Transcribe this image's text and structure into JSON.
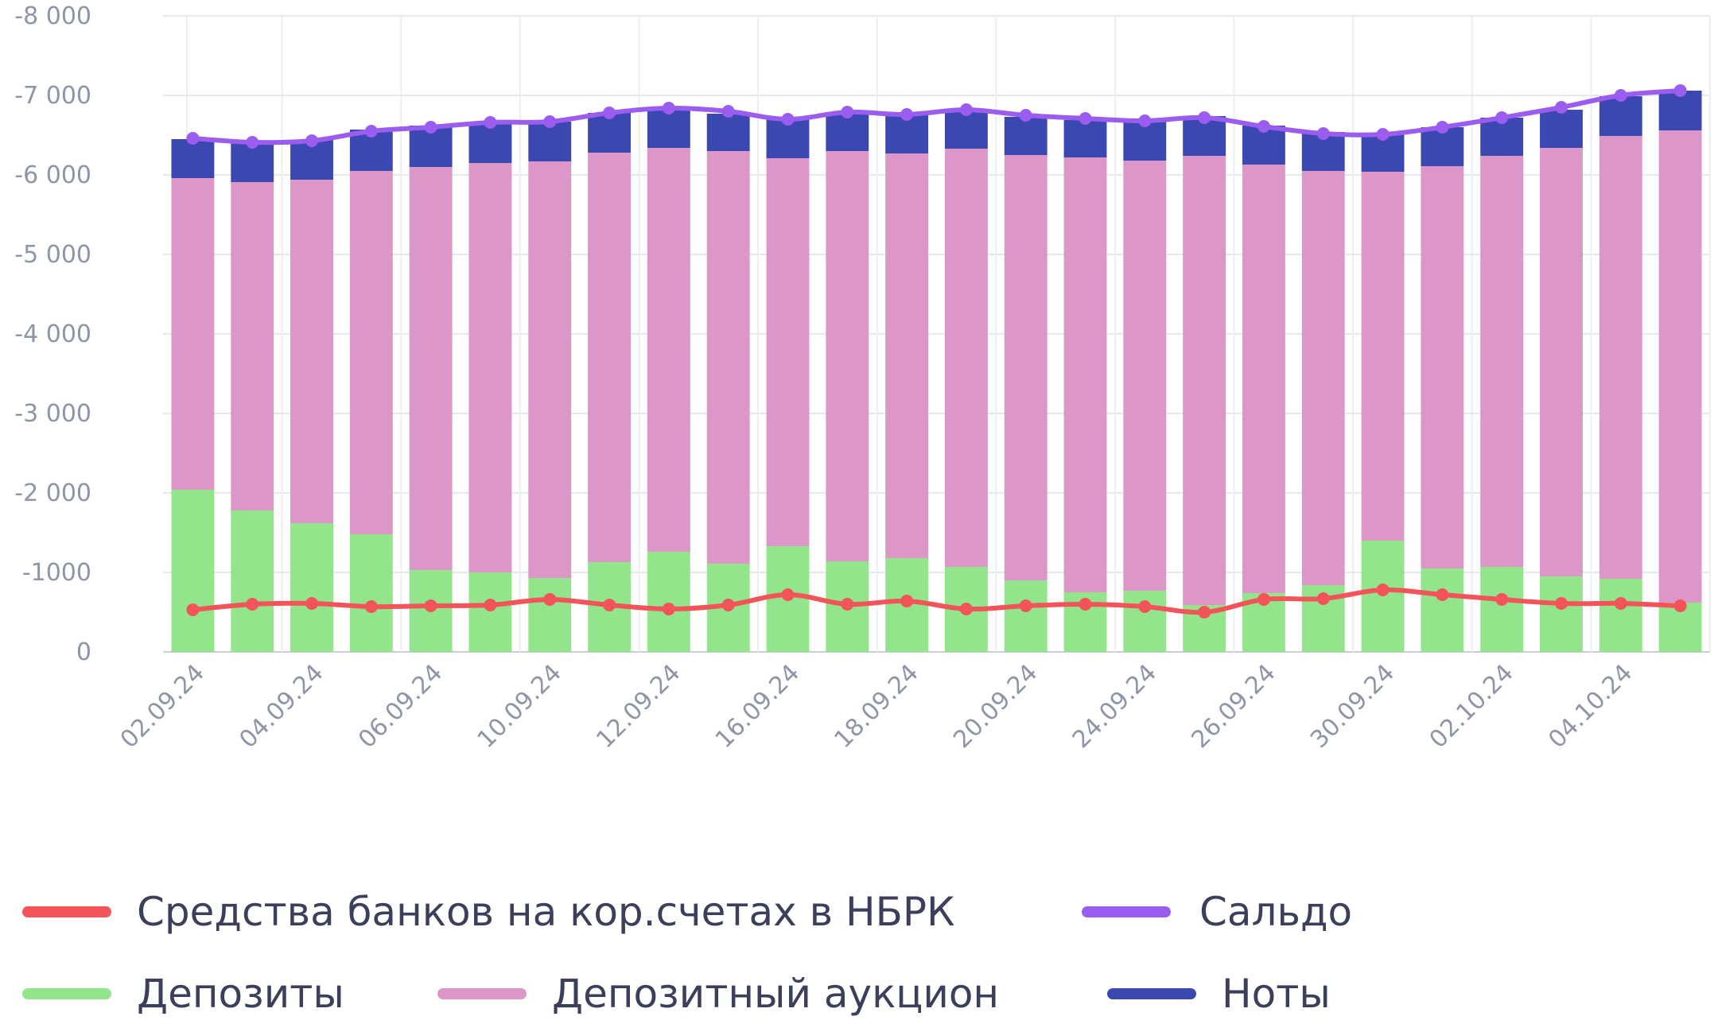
{
  "chart_data": {
    "type": "bar",
    "stacked": true,
    "y_axis": {
      "min": 0,
      "max": -8000,
      "ticks": [
        "0",
        "-1000",
        "-2 000",
        "-3 000",
        "-4 000",
        "-5 000",
        "-6 000",
        "-7 000",
        "-8 000"
      ],
      "tick_values": [
        0,
        -1000,
        -2000,
        -3000,
        -4000,
        -5000,
        -6000,
        -7000,
        -8000
      ]
    },
    "x_tick_labels": [
      "02.09.24",
      "04.09.24",
      "06.09.24",
      "10.09.24",
      "12.09.24",
      "16.09.24",
      "18.09.24",
      "20.09.24",
      "24.09.24",
      "26.09.24",
      "30.09.24",
      "02.10.24",
      "04.10.24"
    ],
    "x_tick_every": 2,
    "grid": true,
    "legend_position": "bottom",
    "bar_series": [
      {
        "name": "Депозиты",
        "color": "#93e58b",
        "values": [
          -2040,
          -1780,
          -1620,
          -1480,
          -1030,
          -1000,
          -930,
          -1130,
          -1260,
          -1110,
          -1330,
          -1140,
          -1180,
          -1070,
          -900,
          -750,
          -770,
          -590,
          -740,
          -840,
          -1400,
          -1050,
          -1070,
          -950,
          -920,
          -620
        ]
      },
      {
        "name": "Депозитный аукцион",
        "color": "#dc96c8",
        "values": [
          -3920,
          -4130,
          -4320,
          -4570,
          -5070,
          -5150,
          -5240,
          -5150,
          -5080,
          -5190,
          -4880,
          -5160,
          -5090,
          -5260,
          -5350,
          -5470,
          -5410,
          -5650,
          -5390,
          -5210,
          -4640,
          -5060,
          -5170,
          -5390,
          -5570,
          -5940
        ]
      },
      {
        "name": "Ноты",
        "color": "#3c48b2",
        "values": [
          -490,
          -510,
          -500,
          -520,
          -520,
          -510,
          -500,
          -500,
          -470,
          -470,
          -510,
          -480,
          -480,
          -490,
          -480,
          -470,
          -490,
          -500,
          -490,
          -490,
          -470,
          -490,
          -480,
          -480,
          -500,
          -500
        ]
      }
    ],
    "line_series": [
      {
        "name": "Средства банков на кор.счетах в НБРК",
        "color": "#f2545a",
        "values": [
          -530,
          -600,
          -610,
          -570,
          -580,
          -590,
          -660,
          -590,
          -540,
          -590,
          -720,
          -600,
          -640,
          -540,
          -580,
          -600,
          -570,
          -500,
          -660,
          -670,
          -780,
          -720,
          -660,
          -610,
          -610,
          -580
        ]
      },
      {
        "name": "Сальдо",
        "color": "#9b5cf0",
        "values": [
          -6460,
          -6410,
          -6430,
          -6550,
          -6600,
          -6660,
          -6670,
          -6780,
          -6840,
          -6800,
          -6700,
          -6790,
          -6760,
          -6820,
          -6750,
          -6710,
          -6680,
          -6720,
          -6610,
          -6520,
          -6510,
          -6600,
          -6720,
          -6850,
          -7000,
          -7060
        ]
      }
    ]
  },
  "legend": {
    "items": [
      {
        "label": "Средства банков на кор.счетах в НБРК",
        "color": "#f2545a"
      },
      {
        "label": "Сальдо",
        "color": "#9b5cf0"
      },
      {
        "label": "Депозиты",
        "color": "#93e58b"
      },
      {
        "label": "Депозитный аукцион",
        "color": "#dc96c8"
      },
      {
        "label": "Ноты",
        "color": "#3c48b2"
      }
    ]
  }
}
